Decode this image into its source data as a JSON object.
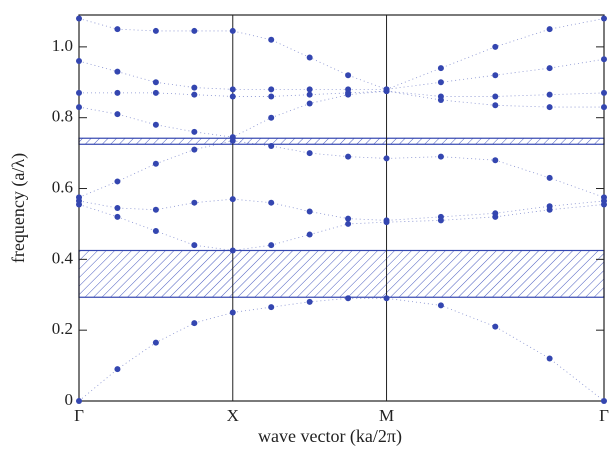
{
  "chart_data": {
    "type": "scatter",
    "x_label": "wave vector (ka/2π)",
    "y_label": "frequency (a/λ)",
    "xlim": [
      0,
      1.7071
    ],
    "ylim": [
      0,
      1.09
    ],
    "xticks": [
      {
        "value": 0,
        "label": "Γ"
      },
      {
        "value": 0.5,
        "label": "X"
      },
      {
        "value": 1.0,
        "label": "M"
      },
      {
        "value": 1.7071,
        "label": "Γ"
      }
    ],
    "yticks": [
      0,
      0.2,
      0.4,
      0.6,
      0.8,
      {
        "value": 1.0,
        "label": "1.0"
      }
    ],
    "gaps": [
      [
        0.293,
        0.425
      ],
      [
        0.725,
        0.742
      ]
    ],
    "x": [
      0,
      0.125,
      0.25,
      0.375,
      0.5,
      0.625,
      0.75,
      0.875,
      1.0,
      1.1768,
      1.3536,
      1.5303,
      1.7071
    ],
    "series": [
      {
        "color": "#3446b0",
        "values": [
          0,
          0.09,
          0.165,
          0.22,
          0.25,
          0.265,
          0.28,
          0.29,
          0.29,
          0.27,
          0.21,
          0.12,
          0
        ]
      },
      {
        "color": "#3446b0",
        "values": [
          0.555,
          0.52,
          0.48,
          0.44,
          0.425,
          0.44,
          0.47,
          0.5,
          0.505,
          0.51,
          0.52,
          0.54,
          0.555
        ]
      },
      {
        "color": "#3446b0",
        "values": [
          0.565,
          0.545,
          0.54,
          0.56,
          0.57,
          0.56,
          0.535,
          0.515,
          0.51,
          0.52,
          0.53,
          0.55,
          0.565
        ]
      },
      {
        "color": "#3446b0",
        "values": [
          0.575,
          0.62,
          0.67,
          0.71,
          0.735,
          0.72,
          0.7,
          0.69,
          0.685,
          0.69,
          0.68,
          0.63,
          0.575
        ]
      },
      {
        "color": "#3446b0",
        "values": [
          0.83,
          0.81,
          0.78,
          0.76,
          0.745,
          0.8,
          0.84,
          0.865,
          0.875,
          0.85,
          0.835,
          0.83,
          0.83
        ]
      },
      {
        "color": "#3446b0",
        "values": [
          0.87,
          0.87,
          0.87,
          0.865,
          0.86,
          0.86,
          0.865,
          0.87,
          0.875,
          0.86,
          0.86,
          0.865,
          0.87
        ]
      },
      {
        "color": "#3446b0",
        "values": [
          0.96,
          0.93,
          0.9,
          0.885,
          0.88,
          0.88,
          0.88,
          0.88,
          0.88,
          0.9,
          0.92,
          0.94,
          0.965
        ]
      },
      {
        "color": "#3446b0",
        "values": [
          1.08,
          1.05,
          1.045,
          1.045,
          1.045,
          1.02,
          0.97,
          0.92,
          0.88,
          0.94,
          1.0,
          1.05,
          1.08
        ]
      }
    ]
  }
}
